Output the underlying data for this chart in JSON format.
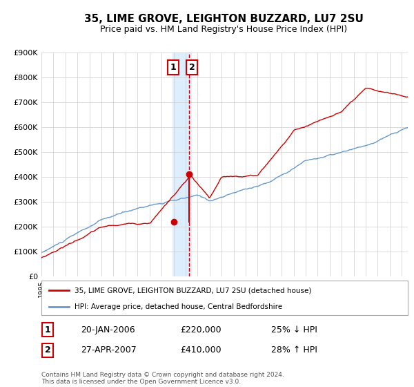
{
  "title": "35, LIME GROVE, LEIGHTON BUZZARD, LU7 2SU",
  "subtitle": "Price paid vs. HM Land Registry's House Price Index (HPI)",
  "legend_line1": "35, LIME GROVE, LEIGHTON BUZZARD, LU7 2SU (detached house)",
  "legend_line2": "HPI: Average price, detached house, Central Bedfordshire",
  "annotation1_label": "1",
  "annotation1_date": "20-JAN-2006",
  "annotation1_price": "£220,000",
  "annotation1_hpi": "25% ↓ HPI",
  "annotation2_label": "2",
  "annotation2_date": "27-APR-2007",
  "annotation2_price": "£410,000",
  "annotation2_hpi": "28% ↑ HPI",
  "footer": "Contains HM Land Registry data © Crown copyright and database right 2024.\nThis data is licensed under the Open Government Licence v3.0.",
  "line1_color": "#cc0000",
  "line2_color": "#6699cc",
  "highlight_color": "#ddeeff",
  "dot_color": "#cc0000",
  "annotation_box_color": "#cc0000",
  "ylim": [
    0,
    900000
  ],
  "yticks": [
    0,
    100000,
    200000,
    300000,
    400000,
    500000,
    600000,
    700000,
    800000,
    900000
  ],
  "grid_color": "#cccccc",
  "background_color": "#ffffff",
  "sale1_x": 2006.05,
  "sale1_y": 220000,
  "sale2_x": 2007.32,
  "sale2_y": 410000,
  "highlight_xmin": 2005.9,
  "highlight_xmax": 2007.45,
  "vline_x": 2007.32,
  "xmin": 1995.0,
  "xmax": 2025.5
}
